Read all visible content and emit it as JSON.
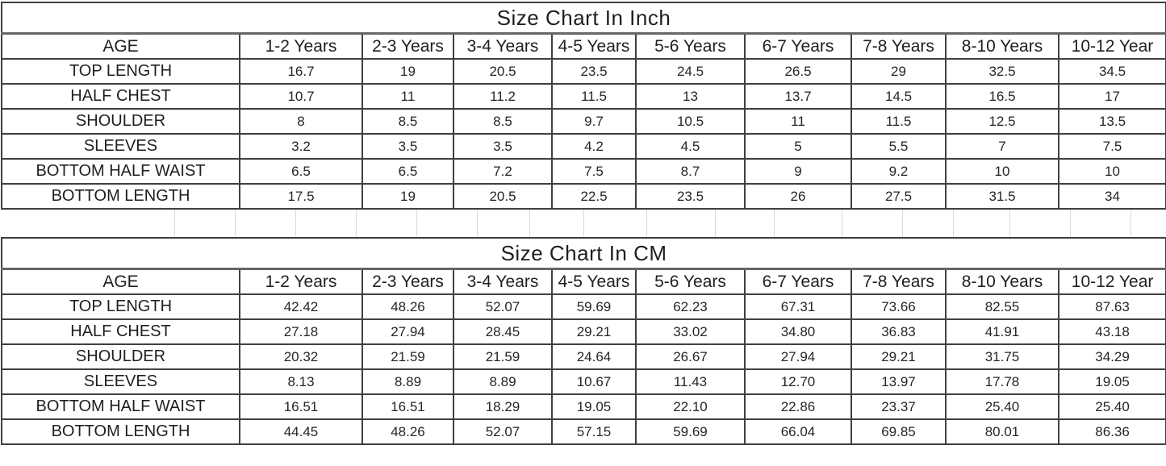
{
  "colors": {
    "table_border": "#404040",
    "title_underline": "#666666",
    "faint_gridline": "#d9d9d9",
    "text": "#1f1f1f",
    "background": "#ffffff"
  },
  "chart_data": [
    {
      "type": "table",
      "title": "Size Chart In Inch",
      "columns": [
        "AGE",
        "1-2 Years",
        "2-3 Years",
        "3-4 Years",
        "4-5 Years",
        "5-6 Years",
        "6-7 Years",
        "7-8 Years",
        "8-10 Years",
        "10-12 Year"
      ],
      "rows": [
        {
          "label": "TOP LENGTH",
          "values": [
            "16.7",
            "19",
            "20.5",
            "23.5",
            "24.5",
            "26.5",
            "29",
            "32.5",
            "34.5"
          ]
        },
        {
          "label": "HALF CHEST",
          "values": [
            "10.7",
            "11",
            "11.2",
            "11.5",
            "13",
            "13.7",
            "14.5",
            "16.5",
            "17"
          ]
        },
        {
          "label": "SHOULDER",
          "values": [
            "8",
            "8.5",
            "8.5",
            "9.7",
            "10.5",
            "11",
            "11.5",
            "12.5",
            "13.5"
          ]
        },
        {
          "label": "SLEEVES",
          "values": [
            "3.2",
            "3.5",
            "3.5",
            "4.2",
            "4.5",
            "5",
            "5.5",
            "7",
            "7.5"
          ]
        },
        {
          "label": "BOTTOM  HALF WAIST",
          "values": [
            "6.5",
            "6.5",
            "7.2",
            "7.5",
            "8.7",
            "9",
            "9.2",
            "10",
            "10"
          ]
        },
        {
          "label": "BOTTOM LENGTH",
          "values": [
            "17.5",
            "19",
            "20.5",
            "22.5",
            "23.5",
            "26",
            "27.5",
            "31.5",
            "34"
          ]
        }
      ]
    },
    {
      "type": "table",
      "title": "Size Chart In CM",
      "columns": [
        "AGE",
        "1-2 Years",
        "2-3 Years",
        "3-4 Years",
        "4-5 Years",
        "5-6 Years",
        "6-7 Years",
        "7-8 Years",
        "8-10 Years",
        "10-12 Year"
      ],
      "rows": [
        {
          "label": "TOP LENGTH",
          "values": [
            "42.42",
            "48.26",
            "52.07",
            "59.69",
            "62.23",
            "67.31",
            "73.66",
            "82.55",
            "87.63"
          ]
        },
        {
          "label": "HALF CHEST",
          "values": [
            "27.18",
            "27.94",
            "28.45",
            "29.21",
            "33.02",
            "34.80",
            "36.83",
            "41.91",
            "43.18"
          ]
        },
        {
          "label": "SHOULDER",
          "values": [
            "20.32",
            "21.59",
            "21.59",
            "24.64",
            "26.67",
            "27.94",
            "29.21",
            "31.75",
            "34.29"
          ]
        },
        {
          "label": "SLEEVES",
          "values": [
            "8.13",
            "8.89",
            "8.89",
            "10.67",
            "11.43",
            "12.70",
            "13.97",
            "17.78",
            "19.05"
          ]
        },
        {
          "label": "BOTTOM  HALF WAIST",
          "values": [
            "16.51",
            "16.51",
            "18.29",
            "19.05",
            "22.10",
            "22.86",
            "23.37",
            "25.40",
            "25.40"
          ]
        },
        {
          "label": "BOTTOM LENGTH",
          "values": [
            "44.45",
            "48.26",
            "52.07",
            "57.15",
            "59.69",
            "66.04",
            "69.85",
            "80.01",
            "86.36"
          ]
        }
      ]
    }
  ]
}
